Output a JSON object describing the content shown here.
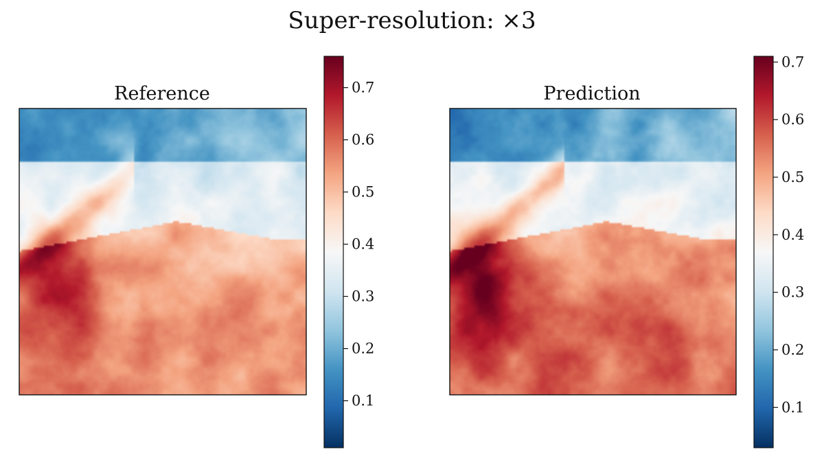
{
  "figure": {
    "title": "Super-resolution: ×3"
  },
  "chart_data": [
    {
      "type": "heatmap",
      "title": "Reference",
      "colormap": "RdBu_r",
      "colorbar": {
        "range": [
          0.01,
          0.76
        ],
        "ticks": [
          0.1,
          0.2,
          0.3,
          0.4,
          0.5,
          0.6,
          0.7
        ],
        "tick_labels": [
          "0.1",
          "0.2",
          "0.3",
          "0.4",
          "0.5",
          "0.6",
          "0.7"
        ]
      },
      "axes": "off",
      "description_regions": {
        "top_band": "low values (~0.05-0.25), blue",
        "middle_band": "near-neutral to light blue (~0.30-0.40)",
        "bottom_left": "high values (~0.65-0.75), dark red",
        "bottom_right": "moderate-high values (~0.50-0.60), light red"
      }
    },
    {
      "type": "heatmap",
      "title": "Prediction",
      "colormap": "RdBu_r",
      "colorbar": {
        "range": [
          0.03,
          0.71
        ],
        "ticks": [
          0.1,
          0.2,
          0.3,
          0.4,
          0.5,
          0.6,
          0.7
        ],
        "tick_labels": [
          "0.1",
          "0.2",
          "0.3",
          "0.4",
          "0.5",
          "0.6",
          "0.7"
        ]
      },
      "axes": "off",
      "description_regions": {
        "top_band": "low values (~0.05-0.25), blue",
        "middle_band": "near-neutral to light blue (~0.30-0.40)",
        "bottom_left": "high values (~0.60-0.70), dark red",
        "bottom_right": "moderate-high values (~0.50-0.58), light red"
      }
    }
  ]
}
